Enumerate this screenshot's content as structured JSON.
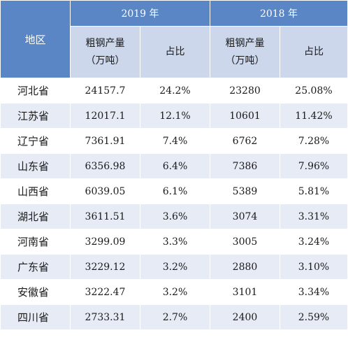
{
  "header": {
    "region_label": "地区",
    "year_2019": "2019 年",
    "year_2018": "2018 年",
    "output_label_line1": "粗钢产量",
    "output_label_line2": "（万吨）",
    "share_label": "占比"
  },
  "rows": [
    {
      "region": "河北省",
      "output_2019": "24157.7",
      "share_2019": "24.2%",
      "output_2018": "23280",
      "share_2018": "25.08%"
    },
    {
      "region": "江苏省",
      "output_2019": "12017.1",
      "share_2019": "12.1%",
      "output_2018": "10601",
      "share_2018": "11.42%"
    },
    {
      "region": "辽宁省",
      "output_2019": "7361.91",
      "share_2019": "7.4%",
      "output_2018": "6762",
      "share_2018": "7.28%"
    },
    {
      "region": "山东省",
      "output_2019": "6356.98",
      "share_2019": "6.4%",
      "output_2018": "7386",
      "share_2018": "7.96%"
    },
    {
      "region": "山西省",
      "output_2019": "6039.05",
      "share_2019": "6.1%",
      "output_2018": "5389",
      "share_2018": "5.81%"
    },
    {
      "region": "湖北省",
      "output_2019": "3611.51",
      "share_2019": "3.6%",
      "output_2018": "3074",
      "share_2018": "3.31%"
    },
    {
      "region": "河南省",
      "output_2019": "3299.09",
      "share_2019": "3.3%",
      "output_2018": "3005",
      "share_2018": "3.24%"
    },
    {
      "region": "广东省",
      "output_2019": "3229.12",
      "share_2019": "3.2%",
      "output_2018": "2880",
      "share_2018": "3.10%"
    },
    {
      "region": "安徽省",
      "output_2019": "3222.47",
      "share_2019": "3.2%",
      "output_2018": "3101",
      "share_2018": "3.34%"
    },
    {
      "region": "四川省",
      "output_2019": "2733.31",
      "share_2019": "2.7%",
      "output_2018": "2400",
      "share_2018": "2.59%"
    }
  ],
  "colors": {
    "header_blue": "#5a86c6",
    "subheader_light": "#ccd7ec",
    "row_alt": "#e6ebf5",
    "row_plain": "#ffffff"
  }
}
